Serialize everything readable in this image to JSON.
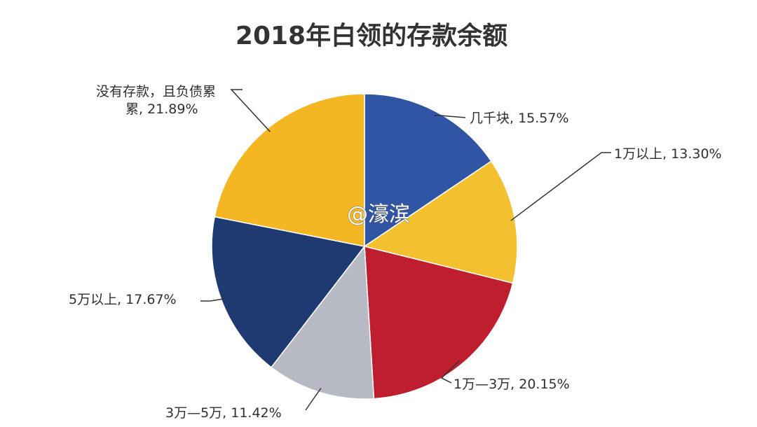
{
  "chart_data": {
    "type": "pie",
    "title": "2018年白领的存款余额",
    "slices": [
      {
        "label": "几千块, 15.57%",
        "value": 15.57,
        "color": "#2f55a4"
      },
      {
        "label": "1万以上, 13.30%",
        "value": 13.3,
        "color": "#f3c130"
      },
      {
        "label": "1万—3万, 20.15%",
        "value": 20.15,
        "color": "#be1e2d"
      },
      {
        "label": "3万—5万, 11.42%",
        "value": 11.42,
        "color": "#b7b9c5"
      },
      {
        "label": "5万以上, 17.67%",
        "value": 17.67,
        "color": "#1f3a70"
      },
      {
        "label_lines": [
          "没有存款，且负债累",
          "累, 21.89%"
        ],
        "value": 21.89,
        "color": "#f4b622"
      }
    ],
    "start": "12 o'clock",
    "direction": "clockwise",
    "legend": "none"
  },
  "watermark": "@濠滨"
}
